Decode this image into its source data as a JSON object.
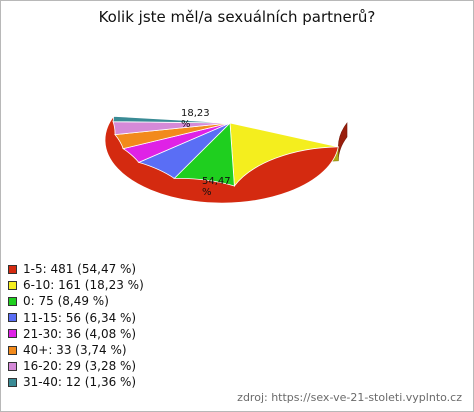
{
  "chart_data": {
    "type": "pie",
    "title": "Kolik jste měl/a sexuálních partnerů?",
    "slices": [
      {
        "label": "1-5",
        "value": 481,
        "percent": 54.47,
        "color": "#d42a10",
        "legend": "1-5: 481 (54,47 %)",
        "pct_text": "54,47",
        "pct_sign": "%"
      },
      {
        "label": "6-10",
        "value": 161,
        "percent": 18.23,
        "color": "#f4ee1e",
        "legend": "6-10: 161 (18,23 %)",
        "pct_text": "18,23",
        "pct_sign": "%"
      },
      {
        "label": "0",
        "value": 75,
        "percent": 8.49,
        "color": "#1fcf1f",
        "legend": "0: 75 (8,49 %)"
      },
      {
        "label": "11-15",
        "value": 56,
        "percent": 6.34,
        "color": "#5a6ef5",
        "legend": "11-15: 56 (6,34 %)"
      },
      {
        "label": "21-30",
        "value": 36,
        "percent": 4.08,
        "color": "#df22e6",
        "legend": "21-30: 36 (4,08 %)"
      },
      {
        "label": "40+",
        "value": 33,
        "percent": 3.74,
        "color": "#f28a1c",
        "legend": "40+: 33 (3,74 %)"
      },
      {
        "label": "16-20",
        "value": 29,
        "percent": 3.28,
        "color": "#d58ad8",
        "legend": "16-20: 29 (3,28 %)"
      },
      {
        "label": "31-40",
        "value": 12,
        "percent": 1.36,
        "color": "#3a8b95",
        "legend": "31-40: 12 (1,36 %)"
      }
    ],
    "legend_position": "bottom-left"
  },
  "source": "zdroj:  https://sex-ve-21-stoleti.vyplnto.cz"
}
